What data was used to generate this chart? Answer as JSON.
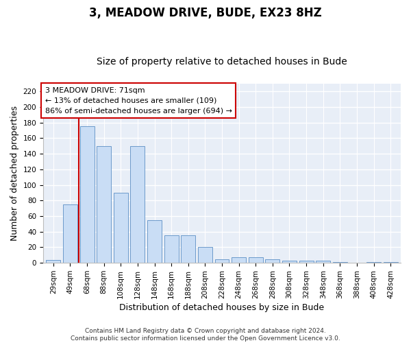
{
  "title": "3, MEADOW DRIVE, BUDE, EX23 8HZ",
  "subtitle": "Size of property relative to detached houses in Bude",
  "xlabel": "Distribution of detached houses by size in Bude",
  "ylabel": "Number of detached properties",
  "footnote": "Contains HM Land Registry data © Crown copyright and database right 2024.\nContains public sector information licensed under the Open Government Licence v3.0.",
  "categories": [
    "29sqm",
    "49sqm",
    "68sqm",
    "88sqm",
    "108sqm",
    "128sqm",
    "148sqm",
    "168sqm",
    "188sqm",
    "208sqm",
    "228sqm",
    "248sqm",
    "268sqm",
    "288sqm",
    "308sqm",
    "328sqm",
    "348sqm",
    "368sqm",
    "388sqm",
    "408sqm",
    "428sqm"
  ],
  "values": [
    4,
    75,
    175,
    150,
    90,
    150,
    55,
    35,
    35,
    20,
    5,
    7,
    7,
    5,
    3,
    3,
    3,
    1,
    0,
    1,
    1
  ],
  "bar_color": "#c9ddf5",
  "bar_edge_color": "#5b8ec4",
  "annotation_box_text": "3 MEADOW DRIVE: 71sqm\n← 13% of detached houses are smaller (109)\n86% of semi-detached houses are larger (694) →",
  "annotation_box_color": "#ffffff",
  "annotation_box_edge_color": "#cc0000",
  "vline_color": "#cc0000",
  "ylim": [
    0,
    230
  ],
  "yticks": [
    0,
    20,
    40,
    60,
    80,
    100,
    120,
    140,
    160,
    180,
    200,
    220
  ],
  "bg_color": "#e8eef7",
  "grid_color": "#ffffff",
  "fig_color": "#ffffff",
  "title_fontsize": 12,
  "subtitle_fontsize": 10,
  "axis_label_fontsize": 9,
  "tick_fontsize": 7.5,
  "annot_fontsize": 8,
  "footnote_fontsize": 6.5
}
